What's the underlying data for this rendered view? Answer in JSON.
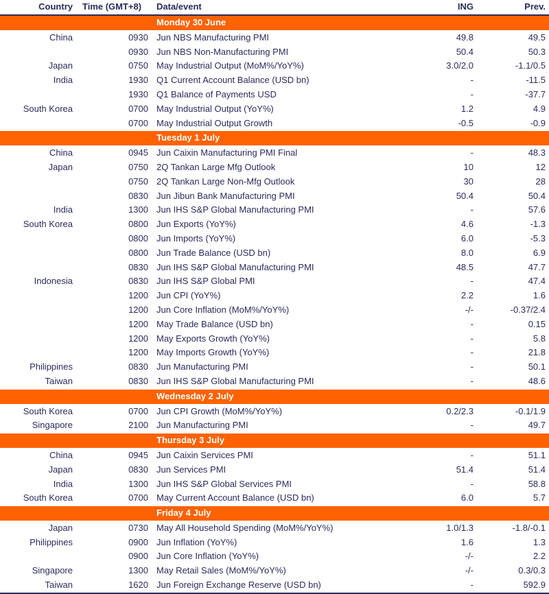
{
  "colors": {
    "accent_orange": "#FF6200",
    "text_navy": "#2B2B5F"
  },
  "table": {
    "headers": {
      "country": "Country",
      "time": "Time (GMT+8)",
      "event": "Data/event",
      "ing": "ING",
      "prev": "Prev."
    },
    "sections": [
      {
        "day": "Monday 30 June",
        "rows": [
          {
            "country": "China",
            "time": "0930",
            "event": "Jun NBS Manufacturing PMI",
            "ing": "49.8",
            "prev": "49.5"
          },
          {
            "country": "",
            "time": "0930",
            "event": "Jun NBS Non-Manufacturing PMI",
            "ing": "50.4",
            "prev": "50.3"
          },
          {
            "country": "Japan",
            "time": "0750",
            "event": "May Industrial Output (MoM%/YoY%)",
            "ing": "3.0/2.0",
            "prev": "-1.1/0.5"
          },
          {
            "country": "India",
            "time": "1930",
            "event": "Q1 Current Account Balance (USD bn)",
            "ing": "-",
            "prev": "-11.5"
          },
          {
            "country": "",
            "time": "1930",
            "event": "Q1 Balance of Payments USD",
            "ing": "-",
            "prev": "-37.7"
          },
          {
            "country": "South Korea",
            "time": "0700",
            "event": "May Industrial Output (YoY%)",
            "ing": "1.2",
            "prev": "4.9"
          },
          {
            "country": "",
            "time": "0700",
            "event": "May Industrial Output Growth",
            "ing": "-0.5",
            "prev": "-0.9"
          }
        ]
      },
      {
        "day": "Tuesday 1 July",
        "rows": [
          {
            "country": "China",
            "time": "0945",
            "event": "Jun Caixin Manufacturing PMI Final",
            "ing": "-",
            "prev": "48.3"
          },
          {
            "country": "Japan",
            "time": "0750",
            "event": "2Q Tankan Large Mfg Outlook",
            "ing": "10",
            "prev": "12"
          },
          {
            "country": "",
            "time": "0750",
            "event": "2Q Tankan Large Non-Mfg Outlook",
            "ing": "30",
            "prev": "28"
          },
          {
            "country": "",
            "time": "0830",
            "event": "Jun Jibun Bank Manufacturing PMI",
            "ing": "50.4",
            "prev": "50.4"
          },
          {
            "country": "India",
            "time": "1300",
            "event": "Jun IHS S&P Global Manufacturing PMI",
            "ing": "-",
            "prev": "57.6"
          },
          {
            "country": "South Korea",
            "time": "0800",
            "event": "Jun Exports (YoY%)",
            "ing": "4.6",
            "prev": "-1.3"
          },
          {
            "country": "",
            "time": "0800",
            "event": "Jun Imports (YoY%)",
            "ing": "6.0",
            "prev": "-5.3"
          },
          {
            "country": "",
            "time": "0800",
            "event": "Jun Trade Balance (USD bn)",
            "ing": "8.0",
            "prev": "6.9"
          },
          {
            "country": "",
            "time": "0830",
            "event": "Jun IHS S&P Global Manufacturing PMI",
            "ing": "48.5",
            "prev": "47.7"
          },
          {
            "country": "Indonesia",
            "time": "0830",
            "event": "Jun IHS S&P Global PMI",
            "ing": "-",
            "prev": "47.4"
          },
          {
            "country": "",
            "time": "1200",
            "event": "Jun CPI (YoY%)",
            "ing": "2.2",
            "prev": "1.6"
          },
          {
            "country": "",
            "time": "1200",
            "event": "Jun Core Inflation (MoM%/YoY%)",
            "ing": "-/-",
            "prev": "-0.37/2.4"
          },
          {
            "country": "",
            "time": "1200",
            "event": "May Trade Balance (USD bn)",
            "ing": "-",
            "prev": "0.15"
          },
          {
            "country": "",
            "time": "1200",
            "event": "May Exports Growth (YoY%)",
            "ing": "-",
            "prev": "5.8"
          },
          {
            "country": "",
            "time": "1200",
            "event": "May Imports Growth (YoY%)",
            "ing": "-",
            "prev": "21.8"
          },
          {
            "country": "Philippines",
            "time": "0830",
            "event": "Jun Manufacturing PMI",
            "ing": "-",
            "prev": "50.1"
          },
          {
            "country": "Taiwan",
            "time": "0830",
            "event": "Jun IHS S&P Global Manufacturing PMI",
            "ing": "-",
            "prev": "48.6"
          }
        ]
      },
      {
        "day": "Wednesday 2 July",
        "rows": [
          {
            "country": "South Korea",
            "time": "0700",
            "event": "Jun CPI Growth (MoM%/YoY%)",
            "ing": "0.2/2.3",
            "prev": "-0.1/1.9"
          },
          {
            "country": "Singapore",
            "time": "2100",
            "event": "Jun Manufacturing PMI",
            "ing": "-",
            "prev": "49.7"
          }
        ]
      },
      {
        "day": "Thursday 3 July",
        "rows": [
          {
            "country": "China",
            "time": "0945",
            "event": "Jun Caixin Services PMI",
            "ing": "-",
            "prev": "51.1"
          },
          {
            "country": "Japan",
            "time": "0830",
            "event": "Jun Services PMI",
            "ing": "51.4",
            "prev": "51.4"
          },
          {
            "country": "India",
            "time": "1300",
            "event": "Jun IHS S&P Global Services PMI",
            "ing": "-",
            "prev": "58.8"
          },
          {
            "country": "South Korea",
            "time": "0700",
            "event": "May Current Account Balance (USD bn)",
            "ing": "6.0",
            "prev": "5.7"
          }
        ]
      },
      {
        "day": "Friday 4 July",
        "rows": [
          {
            "country": "Japan",
            "time": "0730",
            "event": "May All Household Spending (MoM%/YoY%)",
            "ing": "1.0/1.3",
            "prev": "-1.8/-0.1"
          },
          {
            "country": "Philippines",
            "time": "0900",
            "event": "Jun Inflation (YoY%)",
            "ing": "1.6",
            "prev": "1.3"
          },
          {
            "country": "",
            "time": "0900",
            "event": "Jun Core Inflation (YoY%)",
            "ing": "-/-",
            "prev": "2.2"
          },
          {
            "country": "Singapore",
            "time": "1300",
            "event": "May Retail Sales (MoM%/YoY%)",
            "ing": "-/-",
            "prev": "0.3/0.3"
          },
          {
            "country": "Taiwan",
            "time": "1620",
            "event": "Jun Foreign Exchange Reserve (USD bn)",
            "ing": "-",
            "prev": "592.9"
          }
        ]
      }
    ]
  }
}
